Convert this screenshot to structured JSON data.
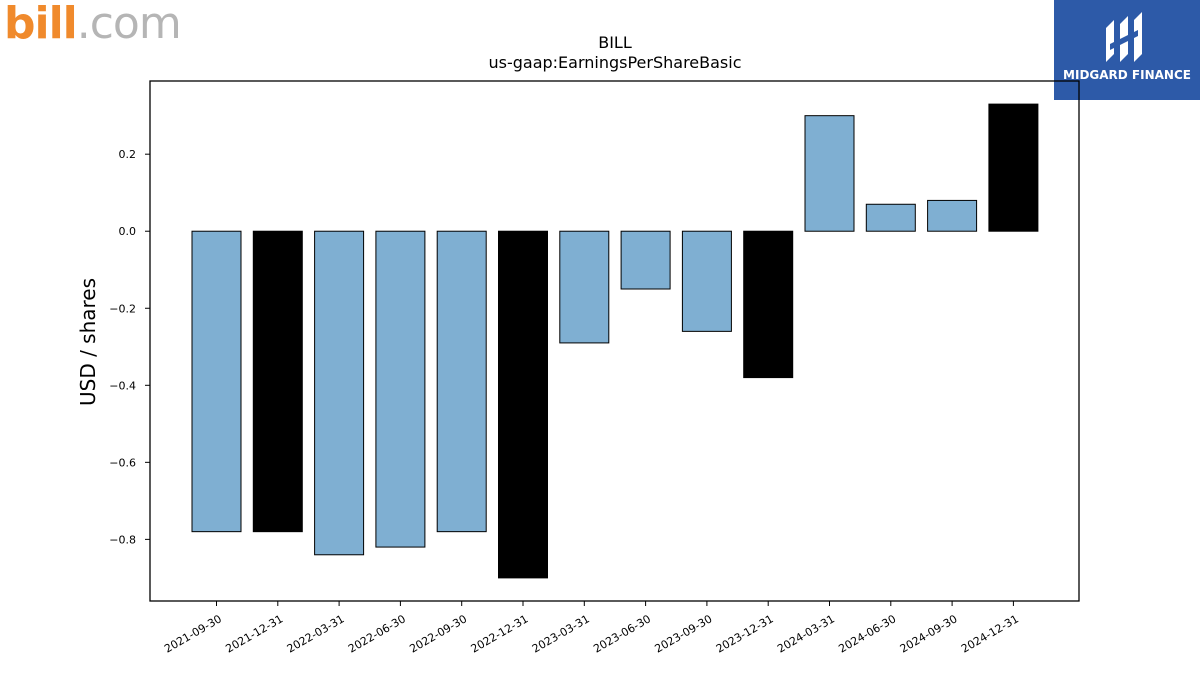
{
  "branding": {
    "left_logo_brand": "bill",
    "left_logo_tld": ".com",
    "right_logo_name": "MIDGARD FINANCE",
    "colors": {
      "bill_orange": "#f08a2c",
      "bill_grey": "#b5b5b5",
      "midgard_blue": "#2d5aa8"
    }
  },
  "chart_data": {
    "type": "bar",
    "title": "BILL",
    "subtitle": "us-gaap:EarningsPerShareBasic",
    "ylabel": "USD / shares",
    "xlabel": "",
    "categories": [
      "2021-09-30",
      "2021-12-31",
      "2022-03-31",
      "2022-06-30",
      "2022-09-30",
      "2022-12-31",
      "2023-03-31",
      "2023-06-30",
      "2023-09-30",
      "2023-12-31",
      "2024-03-31",
      "2024-06-30",
      "2024-09-30",
      "2024-12-31"
    ],
    "values": [
      -0.78,
      -0.78,
      -0.84,
      -0.82,
      -0.78,
      -0.9,
      -0.29,
      -0.15,
      -0.26,
      -0.38,
      0.3,
      0.07,
      0.08,
      0.33
    ],
    "fiscal_year_end": [
      false,
      true,
      false,
      false,
      false,
      true,
      false,
      false,
      false,
      true,
      false,
      false,
      false,
      true
    ],
    "bar_colors": {
      "quarter": "#7fafd2",
      "year_end": "#000000"
    },
    "ylim": [
      -0.96,
      0.39
    ],
    "yticks": [
      -0.8,
      -0.6,
      -0.4,
      -0.2,
      0.0,
      0.2
    ],
    "ytick_labels": [
      "−0.8",
      "−0.6",
      "−0.4",
      "−0.2",
      "0.0",
      "0.2"
    ],
    "grid": false,
    "legend": "none"
  }
}
